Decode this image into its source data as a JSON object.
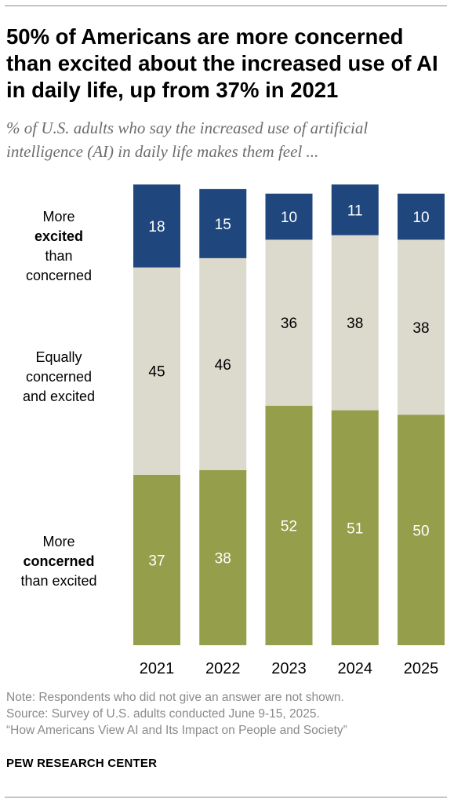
{
  "title": "50% of Americans are more concerned than excited about the increased use of AI in daily life, up from 37% in 2021",
  "subtitle": "% of U.S. adults who say the increased use of artificial intelligence (AI) in daily life makes them feel ...",
  "row_labels": {
    "excited": {
      "line1": "More",
      "line2": "excited",
      "line3": "than",
      "line4": "concerned"
    },
    "equal": {
      "line1": "Equally",
      "line2": "concerned",
      "line3": "and excited"
    },
    "concerned": {
      "line1": "More",
      "line2": "concerned",
      "line3": "than excited"
    }
  },
  "notes": {
    "note": "Note: Respondents who did not give an answer are not shown.",
    "source": "Source: Survey of U.S. adults conducted June 9-15, 2025.",
    "report": "“How Americans View AI and Its Impact on People and Society”"
  },
  "brand": "PEW RESEARCH CENTER",
  "colors": {
    "excited": "#1f467d",
    "equal": "#dcdacd",
    "concerned": "#959e4a"
  },
  "chart_data": {
    "type": "bar",
    "stacked": true,
    "orientation": "vertical",
    "categories": [
      "2021",
      "2022",
      "2023",
      "2024",
      "2025"
    ],
    "series": [
      {
        "key": "concerned",
        "values": [
          37,
          38,
          52,
          51,
          50
        ]
      },
      {
        "key": "equal",
        "values": [
          45,
          46,
          36,
          38,
          38
        ]
      },
      {
        "key": "excited",
        "values": [
          18,
          15,
          10,
          11,
          10
        ]
      }
    ]
  }
}
